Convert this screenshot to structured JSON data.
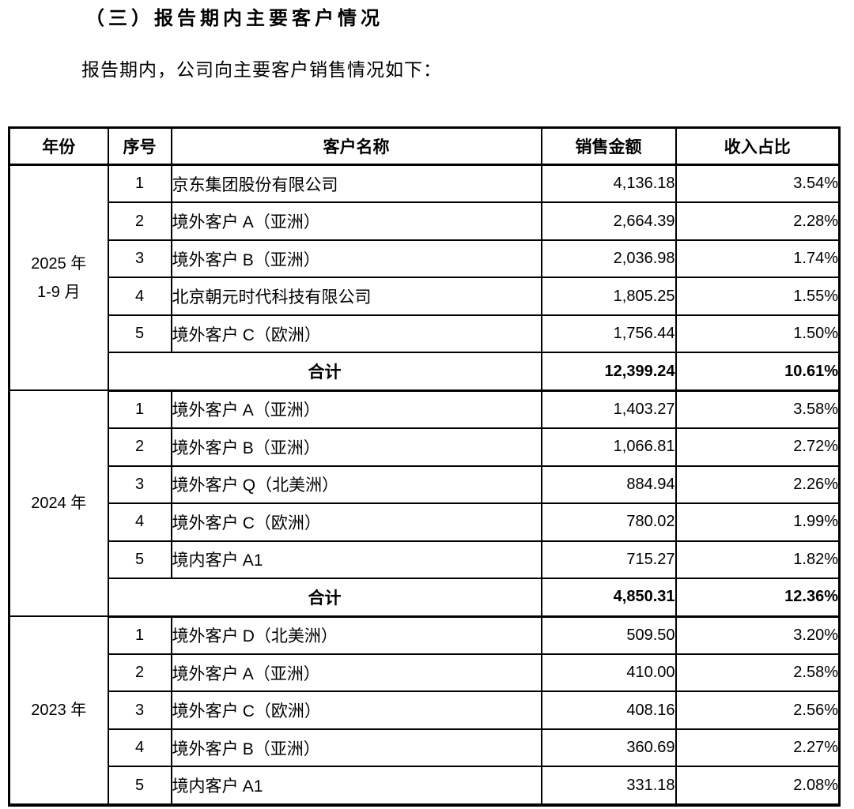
{
  "page": {
    "title": "（三）报告期内主要客户情况",
    "intro": "报告期内，公司向主要客户销售情况如下："
  },
  "table": {
    "columns": {
      "year": "年份",
      "index": "序号",
      "customer": "客户名称",
      "amount": "销售金额",
      "share": "收入占比"
    },
    "total_label": "合计",
    "sections": [
      {
        "year_lines": [
          "2025 年",
          "1-9 月"
        ],
        "rows": [
          {
            "index": "1",
            "customer": "京东集团股份有限公司",
            "amount": "4,136.18",
            "share": "3.54%"
          },
          {
            "index": "2",
            "customer": "境外客户 A（亚洲）",
            "amount": "2,664.39",
            "share": "2.28%"
          },
          {
            "index": "3",
            "customer": "境外客户 B（亚洲）",
            "amount": "2,036.98",
            "share": "1.74%"
          },
          {
            "index": "4",
            "customer": "北京朝元时代科技有限公司",
            "amount": "1,805.25",
            "share": "1.55%"
          },
          {
            "index": "5",
            "customer": "境外客户 C（欧洲）",
            "amount": "1,756.44",
            "share": "1.50%"
          }
        ],
        "total": {
          "amount": "12,399.24",
          "share": "10.61%"
        }
      },
      {
        "year_lines": [
          "2024 年"
        ],
        "rows": [
          {
            "index": "1",
            "customer": "境外客户 A（亚洲）",
            "amount": "1,403.27",
            "share": "3.58%"
          },
          {
            "index": "2",
            "customer": "境外客户 B（亚洲）",
            "amount": "1,066.81",
            "share": "2.72%"
          },
          {
            "index": "3",
            "customer": "境外客户 Q（北美洲）",
            "amount": "884.94",
            "share": "2.26%"
          },
          {
            "index": "4",
            "customer": "境外客户 C（欧洲）",
            "amount": "780.02",
            "share": "1.99%"
          },
          {
            "index": "5",
            "customer": "境内客户 A1",
            "amount": "715.27",
            "share": "1.82%"
          }
        ],
        "total": {
          "amount": "4,850.31",
          "share": "12.36%"
        }
      },
      {
        "year_lines": [
          "2023 年"
        ],
        "rows": [
          {
            "index": "1",
            "customer": "境外客户 D（北美洲）",
            "amount": "509.50",
            "share": "3.20%"
          },
          {
            "index": "2",
            "customer": "境外客户 A（亚洲）",
            "amount": "410.00",
            "share": "2.58%"
          },
          {
            "index": "3",
            "customer": "境外客户 C（欧洲）",
            "amount": "408.16",
            "share": "2.56%"
          },
          {
            "index": "4",
            "customer": "境外客户 B（亚洲）",
            "amount": "360.69",
            "share": "2.27%"
          },
          {
            "index": "5",
            "customer": "境内客户 A1",
            "amount": "331.18",
            "share": "2.08%"
          }
        ],
        "total": null
      }
    ]
  }
}
